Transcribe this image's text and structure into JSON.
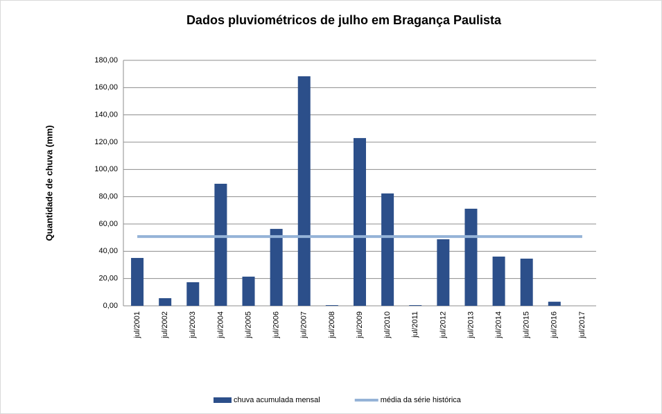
{
  "chart_data": {
    "type": "bar",
    "title": "Dados pluviométricos de julho em Bragança Paulista",
    "y_label": "Quantidade de chuva (mm)",
    "categories": [
      "jul/2001",
      "jul/2002",
      "jul/2003",
      "jul/2004",
      "jul/2005",
      "jul/2006",
      "jul/2007",
      "jul/2008",
      "jul/2009",
      "jul/2010",
      "jul/2011",
      "jul/2012",
      "jul/2013",
      "jul/2014",
      "jul/2015",
      "jul/2016",
      "jul/2017"
    ],
    "series": [
      {
        "name": "chuva acumulada mensal",
        "type": "bar",
        "color": "#2c4f8a",
        "values": [
          35.1,
          5.6,
          17.3,
          89.5,
          21.4,
          56.4,
          168.3,
          0.5,
          123.0,
          82.4,
          0.5,
          48.8,
          71.2,
          36.1,
          34.6,
          3.0,
          null
        ]
      },
      {
        "name": "média da série histórica",
        "type": "line",
        "color": "#95b3d7",
        "values": [
          50.8,
          50.8,
          50.8,
          50.8,
          50.8,
          50.8,
          50.8,
          50.8,
          50.8,
          50.8,
          50.8,
          50.8,
          50.8,
          50.8,
          50.8,
          50.8,
          50.8
        ]
      }
    ],
    "ylim": [
      0,
      180
    ],
    "yticks": [
      {
        "value": 0,
        "label": "0,00"
      },
      {
        "value": 20,
        "label": "20,00"
      },
      {
        "value": 40,
        "label": "40,00"
      },
      {
        "value": 60,
        "label": "60,00"
      },
      {
        "value": 80,
        "label": "80,00"
      },
      {
        "value": 100,
        "label": "100,00"
      },
      {
        "value": 120,
        "label": "120,00"
      },
      {
        "value": 140,
        "label": "140,00"
      },
      {
        "value": 160,
        "label": "160,00"
      },
      {
        "value": 180,
        "label": "180,00"
      }
    ],
    "grid": true,
    "legend": "bottom"
  }
}
